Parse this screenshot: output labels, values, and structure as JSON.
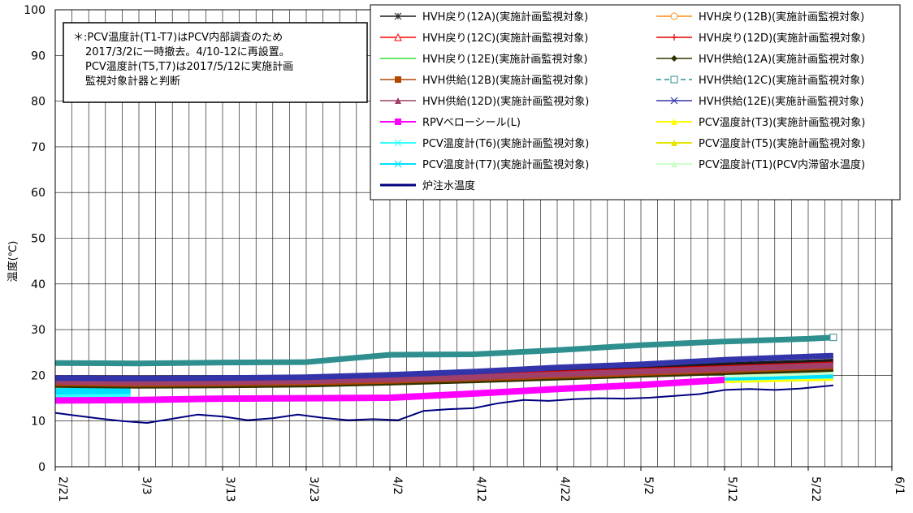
{
  "chart_data": {
    "type": "line",
    "title": "",
    "xlabel": "",
    "ylabel": "温度(℃)",
    "ylim": [
      0,
      100
    ],
    "yticks": [
      0,
      10,
      20,
      30,
      40,
      50,
      60,
      70,
      80,
      90,
      100
    ],
    "xlim": [
      "2/21",
      "6/1"
    ],
    "xticks": [
      "2/21",
      "3/3",
      "3/13",
      "3/23",
      "4/2",
      "4/12",
      "4/22",
      "5/2",
      "5/12",
      "5/22",
      "6/1"
    ],
    "grid": true,
    "legend_position": "top-right",
    "annotation": "＊:PCV温度計(T1-T7)はPCV内部調査のため2017/3/2に一時撤去。4/10-12に再設置。PCV温度計(T5,T7)は2017/5/12に実施計画監視対象計器と判断",
    "annotation_lines": [
      "＊:PCV温度計(T1-T7)はPCV内部調査のため",
      "2017/3/2に一時撤去。4/10-12に再設置。",
      "PCV温度計(T5,T7)は2017/5/12に実施計画",
      "監視対象計器と判断"
    ],
    "series": [
      {
        "name": "HVH戻り(12A)(実施計画監視対象)",
        "color": "#1a1a1a",
        "marker": "asterisk",
        "x": [
          "2/21",
          "3/3",
          "3/13",
          "3/23",
          "4/2",
          "4/12",
          "4/22",
          "5/2",
          "5/12",
          "5/22",
          "5/25"
        ],
        "y": [
          19.2,
          19.0,
          19.1,
          19.3,
          19.8,
          20.3,
          21.0,
          21.6,
          22.2,
          22.8,
          23.0
        ]
      },
      {
        "name": "HVH戻り(12B)(実施計画監視対象)",
        "color": "#ff8c1a",
        "marker": "circle-open",
        "x": [
          "2/21",
          "3/3",
          "3/13",
          "3/23",
          "4/2",
          "4/12",
          "4/22",
          "5/2",
          "5/12",
          "5/22",
          "5/25"
        ],
        "y": [
          18.0,
          17.8,
          18.0,
          18.2,
          18.6,
          19.0,
          19.6,
          20.2,
          20.8,
          21.3,
          21.5
        ]
      },
      {
        "name": "HVH戻り(12C)(実施計画監視対象)",
        "color": "#ff0000",
        "marker": "triangle-open",
        "x": [
          "2/21",
          "3/3",
          "3/13",
          "3/23",
          "4/2",
          "4/12",
          "4/22",
          "5/2",
          "5/12",
          "5/22",
          "5/25"
        ],
        "y": [
          18.5,
          18.3,
          18.4,
          18.6,
          19.0,
          19.5,
          20.1,
          20.7,
          21.3,
          21.9,
          22.1
        ]
      },
      {
        "name": "HVH戻り(12D)(実施計画監視対象)",
        "color": "#e00000",
        "marker": "plus",
        "x": [
          "2/21",
          "3/3",
          "3/13",
          "3/23",
          "4/2",
          "4/12",
          "4/22",
          "5/2",
          "5/12",
          "5/22",
          "5/25"
        ],
        "y": [
          18.8,
          18.6,
          18.7,
          18.9,
          19.3,
          19.8,
          20.4,
          21.0,
          21.6,
          22.2,
          22.4
        ]
      },
      {
        "name": "HVH戻り(12E)(実施計画監視対象)",
        "color": "#33dd33",
        "marker": "dash",
        "x": [
          "2/21",
          "3/3",
          "3/13",
          "3/23",
          "4/2",
          "4/12",
          "4/22",
          "5/2",
          "5/12",
          "5/22",
          "5/25"
        ],
        "y": [
          18.2,
          18.0,
          18.1,
          18.3,
          18.7,
          19.2,
          19.8,
          20.4,
          21.0,
          21.6,
          21.8
        ]
      },
      {
        "name": "HVH供給(12A)(実施計画監視対象)",
        "color": "#333300",
        "marker": "diamond",
        "x": [
          "2/21",
          "3/3",
          "3/13",
          "3/23",
          "4/2",
          "4/12",
          "4/22",
          "5/2",
          "5/12",
          "5/22",
          "5/25"
        ],
        "y": [
          17.9,
          17.7,
          17.8,
          18.0,
          18.4,
          18.9,
          19.5,
          20.1,
          20.7,
          21.2,
          21.4
        ]
      },
      {
        "name": "HVH供給(12B)(実施計画監視対象)",
        "color": "#b34700",
        "marker": "square",
        "x": [
          "2/21",
          "3/3",
          "3/13",
          "3/23",
          "4/2",
          "4/12",
          "4/22",
          "5/2",
          "5/12",
          "5/22",
          "5/25"
        ],
        "y": [
          18.3,
          18.1,
          18.2,
          18.4,
          18.8,
          19.3,
          19.9,
          20.5,
          21.1,
          21.7,
          21.9
        ]
      },
      {
        "name": "HVH供給(12C)(実施計画監視対象)",
        "color": "#2f8f8f",
        "marker": "square-open",
        "dashed": true,
        "x": [
          "2/21",
          "3/3",
          "3/13",
          "3/23",
          "4/2",
          "4/12",
          "4/22",
          "5/2",
          "5/12",
          "5/22",
          "5/25"
        ],
        "y": [
          22.7,
          22.6,
          22.8,
          22.9,
          24.5,
          24.6,
          25.5,
          26.6,
          27.4,
          28.0,
          28.3
        ]
      },
      {
        "name": "HVH供給(12D)(実施計画監視対象)",
        "color": "#a0406a",
        "marker": "triangle",
        "x": [
          "2/21",
          "3/3",
          "3/13",
          "3/23",
          "4/2",
          "4/12",
          "4/22",
          "5/2",
          "5/12",
          "5/22",
          "5/25"
        ],
        "y": [
          18.6,
          18.4,
          18.5,
          18.7,
          19.1,
          19.6,
          20.2,
          20.8,
          21.4,
          22.0,
          22.2
        ]
      },
      {
        "name": "HVH供給(12E)(実施計画監視対象)",
        "color": "#3333aa",
        "marker": "x",
        "x": [
          "2/21",
          "3/3",
          "3/13",
          "3/23",
          "4/2",
          "4/12",
          "4/22",
          "5/2",
          "5/12",
          "5/22",
          "5/25"
        ],
        "y": [
          19.4,
          19.3,
          19.4,
          19.6,
          20.1,
          20.8,
          21.7,
          22.4,
          23.4,
          24.1,
          24.3
        ]
      },
      {
        "name": "RPVベローシール(L)",
        "color": "#ff00ff",
        "marker": "square",
        "x": [
          "2/21",
          "3/3",
          "3/13",
          "3/23",
          "4/2",
          "4/12",
          "4/22",
          "5/2",
          "5/12"
        ],
        "y": [
          14.5,
          14.6,
          14.9,
          15.0,
          15.1,
          16.0,
          17.0,
          17.9,
          19.0
        ]
      },
      {
        "name": "PCV温度計(T3)(実施計画監視対象)",
        "color": "#ffff00",
        "marker": "triangle",
        "x": [
          "2/21",
          "2/24",
          "2/27",
          "3/2",
          "5/12",
          "5/17",
          "5/22",
          "5/25"
        ],
        "y": [
          16.0,
          16.1,
          16.1,
          16.2,
          19.0,
          19.2,
          19.4,
          19.5
        ]
      },
      {
        "name": "PCV温度計(T6)(実施計画監視対象)",
        "color": "#33ffff",
        "marker": "x",
        "x": [
          "2/21",
          "2/24",
          "2/27",
          "3/2",
          "5/12",
          "5/17",
          "5/22",
          "5/25"
        ],
        "y": [
          15.8,
          15.9,
          15.9,
          16.0,
          19.5,
          19.7,
          19.9,
          20.0
        ]
      },
      {
        "name": "PCV温度計(T5)(実施計画監視対象)",
        "color": "#e6e600",
        "marker": "triangle",
        "x": [
          "2/21",
          "2/24",
          "2/27",
          "3/2",
          "5/12",
          "5/17",
          "5/22",
          "5/25"
        ],
        "y": [
          17.2,
          17.3,
          17.3,
          17.4,
          19.8,
          20.0,
          20.2,
          20.3
        ]
      },
      {
        "name": "PCV温度計(T7)(実施計画監視対象)",
        "color": "#00e0ff",
        "marker": "x",
        "x": [
          "2/21",
          "2/24",
          "2/27",
          "3/2",
          "5/12",
          "5/17",
          "5/22",
          "5/25"
        ],
        "y": [
          16.5,
          16.6,
          16.6,
          16.7,
          19.6,
          19.8,
          20.0,
          20.1
        ]
      },
      {
        "name": "PCV温度計(T1)(PCV内滞留水温度)",
        "color": "#ccffcc",
        "marker": "triangle",
        "x": [
          "2/21",
          "2/24",
          "2/27",
          "3/2",
          "5/12",
          "5/17",
          "5/22",
          "5/25"
        ],
        "y": [
          18.0,
          18.1,
          18.2,
          18.3,
          20.3,
          20.5,
          20.8,
          21.0
        ]
      },
      {
        "name": "炉注水温度",
        "color": "#000080",
        "marker": "none",
        "x": [
          "2/21",
          "2/23",
          "2/26",
          "3/1",
          "3/4",
          "3/7",
          "3/10",
          "3/13",
          "3/16",
          "3/19",
          "3/22",
          "3/25",
          "3/28",
          "3/31",
          "4/3",
          "4/6",
          "4/9",
          "4/12",
          "4/15",
          "4/18",
          "4/21",
          "4/24",
          "4/27",
          "4/30",
          "5/3",
          "5/6",
          "5/9",
          "5/12",
          "5/15",
          "5/18",
          "5/21",
          "5/25"
        ],
        "y": [
          11.8,
          11.3,
          10.6,
          10.0,
          9.6,
          10.5,
          11.4,
          11.0,
          10.2,
          10.6,
          11.4,
          10.7,
          10.2,
          10.4,
          10.2,
          12.2,
          12.6,
          12.8,
          13.9,
          14.6,
          14.4,
          14.8,
          15.0,
          14.9,
          15.1,
          15.5,
          15.9,
          16.8,
          17.0,
          16.8,
          17.1,
          17.8
        ]
      }
    ]
  }
}
